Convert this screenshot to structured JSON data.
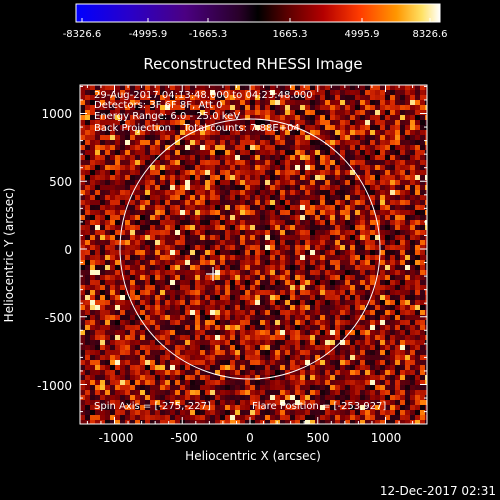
{
  "colorbar": {
    "tick_labels": [
      "-8326.6",
      "-4995.9",
      "-1665.3",
      "1665.3",
      "4995.9",
      "8326.6"
    ]
  },
  "image": {
    "title": "Reconstructed RHESSI Image",
    "xlabel": "Heliocentric X (arcsec)",
    "ylabel": "Heliocentric Y (arcsec)",
    "xticks": [
      "-1000",
      "-500",
      "0",
      "500",
      "1000"
    ],
    "yticks": [
      "1000",
      "500",
      "0",
      "-500",
      "-1000"
    ],
    "xlim": [
      -1280,
      1280
    ],
    "ylim": [
      -1280,
      1280
    ],
    "solar_radius_arcsec": 960,
    "info_lines": [
      "29-Aug-2017 04:13:48.000 to 04:23:48.000",
      "Detectors: 3F 6F 8F, Att 0",
      "Energy Range: 6.0 - 25.0 keV",
      "Back Projection    Total counts: 7.88E+04"
    ],
    "spin_axis_text": "Spin Axis = [-275,-227]",
    "flare_position_text": "Flare Position = [-253,927]",
    "spin_axis": [
      -275,
      -227
    ]
  },
  "footer": {
    "timestamp": "12-Dec-2017 02:31"
  }
}
